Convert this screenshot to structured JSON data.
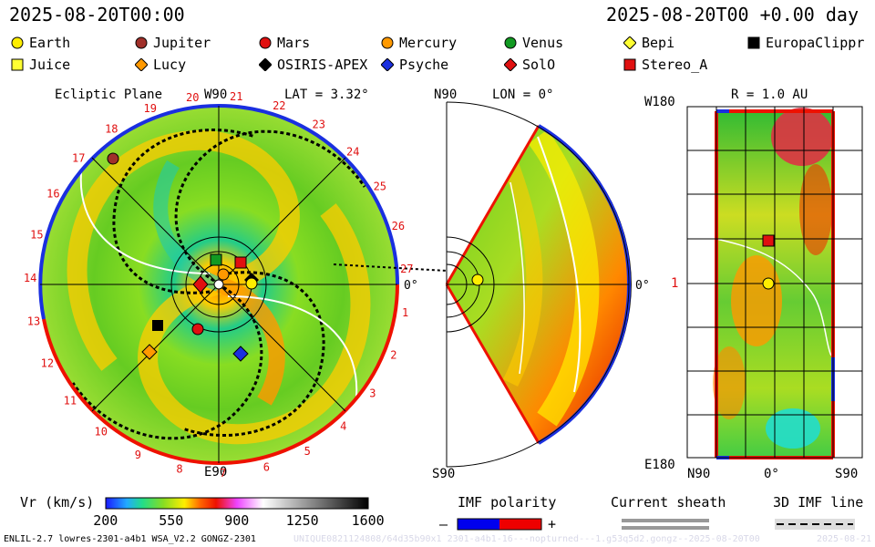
{
  "header": {
    "left_time": "2025-08-20T00:00",
    "right_time": "2025-08-20T00 +0.00 day"
  },
  "legend": [
    {
      "name": "Earth",
      "color": "#ffee00",
      "shape": "circle"
    },
    {
      "name": "Jupiter",
      "color": "#a0302a",
      "shape": "circle"
    },
    {
      "name": "Mars",
      "color": "#e01010",
      "shape": "circle"
    },
    {
      "name": "Mercury",
      "color": "#ff9900",
      "shape": "circle"
    },
    {
      "name": "Venus",
      "color": "#129a22",
      "shape": "circle"
    },
    {
      "name": "Bepi",
      "color": "#ffff33",
      "shape": "diamond"
    },
    {
      "name": "EuropaClippr",
      "color": "#000000",
      "shape": "square"
    },
    {
      "name": "Juice",
      "color": "#ffff33",
      "shape": "square"
    },
    {
      "name": "Lucy",
      "color": "#ff9900",
      "shape": "diamond"
    },
    {
      "name": "OSIRIS-APEX",
      "color": "#000000",
      "shape": "diamond"
    },
    {
      "name": "Psyche",
      "color": "#1a2fe0",
      "shape": "diamond"
    },
    {
      "name": "SolO",
      "color": "#e01010",
      "shape": "diamond"
    },
    {
      "name": "Stereo_A",
      "color": "#e01010",
      "shape": "square"
    }
  ],
  "ecliptic": {
    "label": "Ecliptic Plane",
    "top_axis": "W90",
    "bottom_axis": "E90",
    "right_axis": "0°",
    "lat_label": "LAT = 3.32°",
    "carrington_ticks": [
      "20",
      "21",
      "22",
      "23",
      "24",
      "25",
      "26",
      "27",
      "1",
      "2",
      "3",
      "4",
      "5",
      "6",
      "7",
      "8",
      "9",
      "10",
      "11",
      "12",
      "13",
      "14",
      "15",
      "16",
      "17",
      "18",
      "19"
    ]
  },
  "meridional": {
    "top_axis": "N90",
    "bottom_axis": "S90",
    "right_axis": "0°",
    "lon_label": "LON = 0°"
  },
  "radial_map": {
    "title": "R = 1.0 AU",
    "top_left": "W180",
    "bottom_left": "E180",
    "mid_left": "1",
    "bottom_n": "N90",
    "bottom_mid": "0°",
    "bottom_s": "S90"
  },
  "colorbar": {
    "label": "Vr (km/s)",
    "ticks": [
      "200",
      "550",
      "900",
      "1250",
      "1600"
    ]
  },
  "imf": {
    "label": "IMF polarity",
    "minus": "–",
    "plus": "+",
    "neg_color": "#0000ee",
    "pos_color": "#ee0000"
  },
  "current_sheath": {
    "label": "Current sheath"
  },
  "imf_line": {
    "label": "3D IMF line"
  },
  "footer": {
    "model": "ENLIL-2.7 lowres-2301-a4b1 WSA_V2.2 GONGZ-2301",
    "run_id": "UNIQUE0821124808/64d35b90x1 2301-a4b1-16---nopturned---1.g53q5d2.gongz--2025-08-20T00",
    "right_date": "2025-08-21"
  }
}
